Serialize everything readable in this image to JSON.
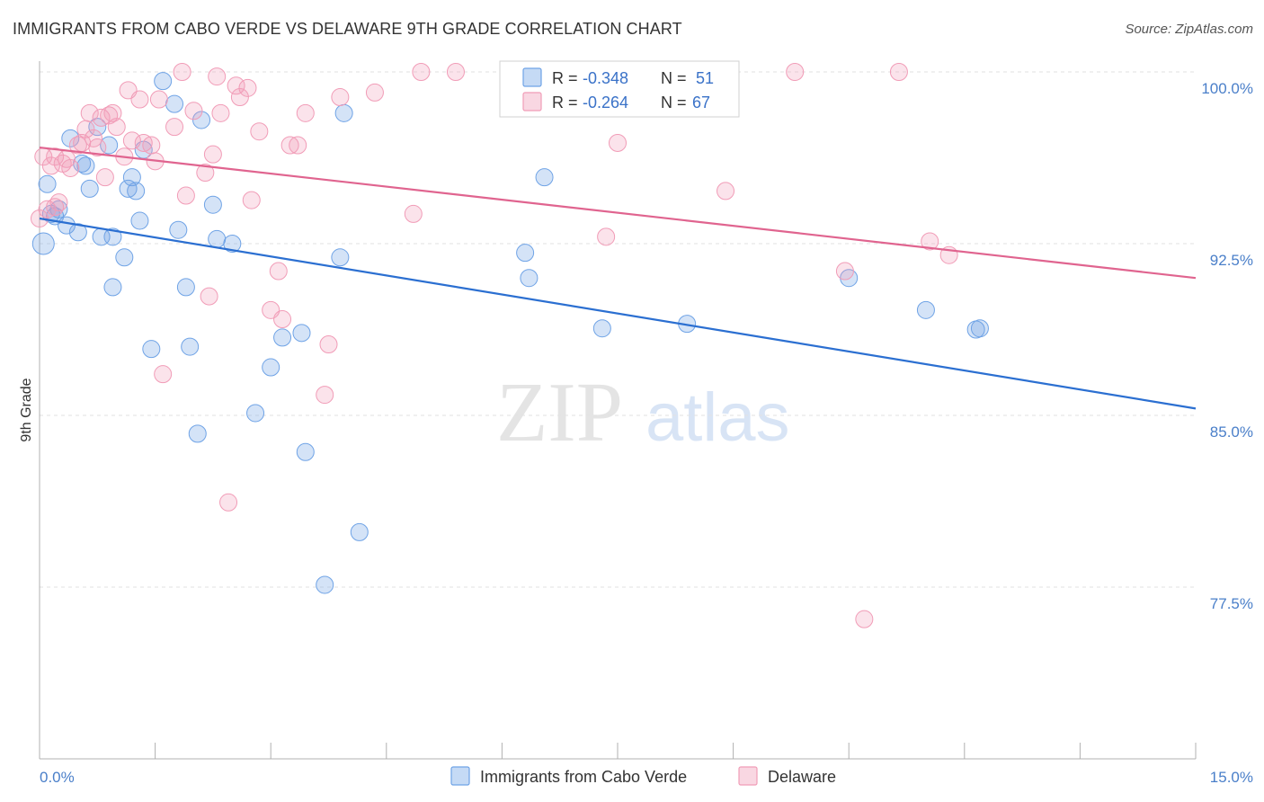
{
  "header": {
    "title": "IMMIGRANTS FROM CABO VERDE VS DELAWARE 9TH GRADE CORRELATION CHART",
    "source": "Source: ZipAtlas.com"
  },
  "watermark": {
    "zip": "ZIP",
    "atlas": "atlas"
  },
  "legend": {
    "rows": [
      {
        "r_label": "R = ",
        "r_value": "-0.348",
        "n_label": "N = ",
        "n_value": "51",
        "color": "#6fa3e6"
      },
      {
        "r_label": "R = ",
        "r_value": "-0.264",
        "n_label": "N = ",
        "n_value": "67",
        "color": "#f19cb7"
      }
    ]
  },
  "chart_data": {
    "type": "scatter",
    "title": "IMMIGRANTS FROM CABO VERDE VS DELAWARE 9TH GRADE CORRELATION CHART",
    "xlabel": "",
    "ylabel": "9th Grade",
    "xlim": [
      0,
      15
    ],
    "ylim": [
      70,
      101
    ],
    "x_tick_labels": [
      "0.0%",
      "15.0%"
    ],
    "y_ticks": [
      100,
      92.5,
      85,
      77.5
    ],
    "y_tick_labels": [
      "100.0%",
      "92.5%",
      "85.0%",
      "77.5%"
    ],
    "series": [
      {
        "name": "Immigrants from Cabo Verde",
        "color": "#6fa3e6",
        "line_color": "#2b6fd1",
        "trend": [
          [
            0,
            93.6
          ],
          [
            15,
            85.3
          ]
        ],
        "points": [
          [
            0.05,
            92.5
          ],
          [
            0.1,
            95.1
          ],
          [
            0.2,
            93.7
          ],
          [
            0.25,
            94.0
          ],
          [
            0.35,
            93.3
          ],
          [
            0.4,
            97.1
          ],
          [
            0.5,
            93.0
          ],
          [
            0.55,
            96.0
          ],
          [
            0.6,
            95.9
          ],
          [
            0.65,
            94.9
          ],
          [
            0.75,
            97.6
          ],
          [
            0.8,
            92.8
          ],
          [
            0.9,
            96.8
          ],
          [
            0.95,
            92.8
          ],
          [
            0.95,
            90.6
          ],
          [
            1.1,
            91.9
          ],
          [
            1.2,
            95.4
          ],
          [
            1.25,
            94.8
          ],
          [
            1.15,
            94.9
          ],
          [
            1.3,
            93.5
          ],
          [
            1.35,
            96.6
          ],
          [
            1.45,
            87.9
          ],
          [
            1.6,
            99.6
          ],
          [
            1.75,
            98.6
          ],
          [
            1.8,
            93.1
          ],
          [
            1.9,
            90.6
          ],
          [
            1.95,
            88.0
          ],
          [
            2.05,
            84.2
          ],
          [
            2.1,
            97.9
          ],
          [
            2.25,
            94.2
          ],
          [
            2.3,
            92.7
          ],
          [
            2.5,
            92.5
          ],
          [
            2.8,
            85.1
          ],
          [
            3.0,
            87.1
          ],
          [
            3.15,
            88.4
          ],
          [
            3.4,
            88.6
          ],
          [
            3.45,
            83.4
          ],
          [
            3.7,
            77.6
          ],
          [
            3.9,
            91.9
          ],
          [
            3.95,
            98.2
          ],
          [
            4.15,
            79.9
          ],
          [
            6.3,
            92.1
          ],
          [
            6.35,
            91.0
          ],
          [
            6.55,
            95.4
          ],
          [
            7.3,
            88.8
          ],
          [
            8.4,
            89.0
          ],
          [
            10.5,
            91.0
          ],
          [
            11.5,
            89.6
          ],
          [
            12.2,
            88.8
          ],
          [
            12.15,
            88.75
          ],
          [
            0.15,
            93.8
          ]
        ]
      },
      {
        "name": "Delaware",
        "color": "#f19cb7",
        "line_color": "#e0648f",
        "trend": [
          [
            0,
            96.7
          ],
          [
            15,
            91.0
          ]
        ],
        "points": [
          [
            0.05,
            96.3
          ],
          [
            0.1,
            94.0
          ],
          [
            0.15,
            95.9
          ],
          [
            0.2,
            96.3
          ],
          [
            0.25,
            94.3
          ],
          [
            0.3,
            96.0
          ],
          [
            0.35,
            96.2
          ],
          [
            0.4,
            95.8
          ],
          [
            0.5,
            96.8
          ],
          [
            0.55,
            96.9
          ],
          [
            0.6,
            97.5
          ],
          [
            0.65,
            98.2
          ],
          [
            0.75,
            96.7
          ],
          [
            0.8,
            98.0
          ],
          [
            0.85,
            95.4
          ],
          [
            0.9,
            98.1
          ],
          [
            0.95,
            98.2
          ],
          [
            1.0,
            97.6
          ],
          [
            1.1,
            96.3
          ],
          [
            1.15,
            99.2
          ],
          [
            1.2,
            97.0
          ],
          [
            1.3,
            98.8
          ],
          [
            1.35,
            96.9
          ],
          [
            1.45,
            96.8
          ],
          [
            1.5,
            96.1
          ],
          [
            1.6,
            86.8
          ],
          [
            1.55,
            98.8
          ],
          [
            1.75,
            97.6
          ],
          [
            1.85,
            100.0
          ],
          [
            1.9,
            94.6
          ],
          [
            2.0,
            98.3
          ],
          [
            2.15,
            95.6
          ],
          [
            2.2,
            90.2
          ],
          [
            2.25,
            96.4
          ],
          [
            2.3,
            99.8
          ],
          [
            2.35,
            98.2
          ],
          [
            2.45,
            81.2
          ],
          [
            2.55,
            99.4
          ],
          [
            2.6,
            98.9
          ],
          [
            2.7,
            99.3
          ],
          [
            2.75,
            94.4
          ],
          [
            2.85,
            97.4
          ],
          [
            3.0,
            89.6
          ],
          [
            3.1,
            91.3
          ],
          [
            3.15,
            89.2
          ],
          [
            3.25,
            96.8
          ],
          [
            3.35,
            96.8
          ],
          [
            3.45,
            98.2
          ],
          [
            3.7,
            85.9
          ],
          [
            3.75,
            88.1
          ],
          [
            3.9,
            98.9
          ],
          [
            4.35,
            99.1
          ],
          [
            4.85,
            93.8
          ],
          [
            4.95,
            100.0
          ],
          [
            5.4,
            100.0
          ],
          [
            7.35,
            92.8
          ],
          [
            7.5,
            96.9
          ],
          [
            8.9,
            94.8
          ],
          [
            9.8,
            100.0
          ],
          [
            10.45,
            91.3
          ],
          [
            10.7,
            76.1
          ],
          [
            11.15,
            100.0
          ],
          [
            11.55,
            92.6
          ],
          [
            11.8,
            92.0
          ],
          [
            0.0,
            93.6
          ],
          [
            0.2,
            94.1
          ],
          [
            0.7,
            97.1
          ]
        ]
      }
    ]
  }
}
